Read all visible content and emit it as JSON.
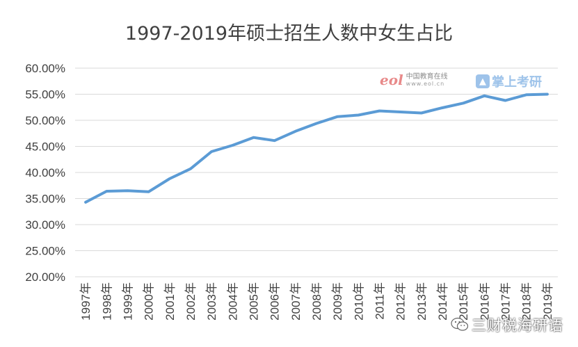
{
  "chart_data": {
    "type": "line",
    "title": "1997-2019年硕士招生人数中女生占比",
    "xlabel": "",
    "ylabel": "",
    "categories": [
      "1997年",
      "1998年",
      "1999年",
      "2000年",
      "2001年",
      "2002年",
      "2003年",
      "2004年",
      "2005年",
      "2006年",
      "2007年",
      "2008年",
      "2009年",
      "2010年",
      "2011年",
      "2012年",
      "2013年",
      "2014年",
      "2015年",
      "2016年",
      "2017年",
      "2018年",
      "2019年"
    ],
    "series": [
      {
        "values": [
          34.3,
          36.4,
          36.5,
          36.3,
          38.8,
          40.7,
          44.0,
          45.2,
          46.7,
          46.1,
          47.9,
          49.4,
          50.7,
          51.0,
          51.8,
          51.6,
          51.4,
          52.4,
          53.3,
          54.7,
          53.8,
          54.9,
          55.0
        ],
        "color": "#5b9bd5"
      }
    ],
    "ylim": [
      20,
      60
    ],
    "ytick_step": 5,
    "ytick_labels": [
      "20.00%",
      "25.00%",
      "30.00%",
      "35.00%",
      "40.00%",
      "45.00%",
      "50.00%",
      "55.00%",
      "60.00%"
    ],
    "grid": true,
    "legend": "none"
  },
  "watermarks": {
    "eol_logo": "eol",
    "eol_name": "中国教育在线",
    "eol_url": "www.eol.cn",
    "kaoyan_brand": "掌上考研",
    "wechat_account": "三财税海研语"
  }
}
